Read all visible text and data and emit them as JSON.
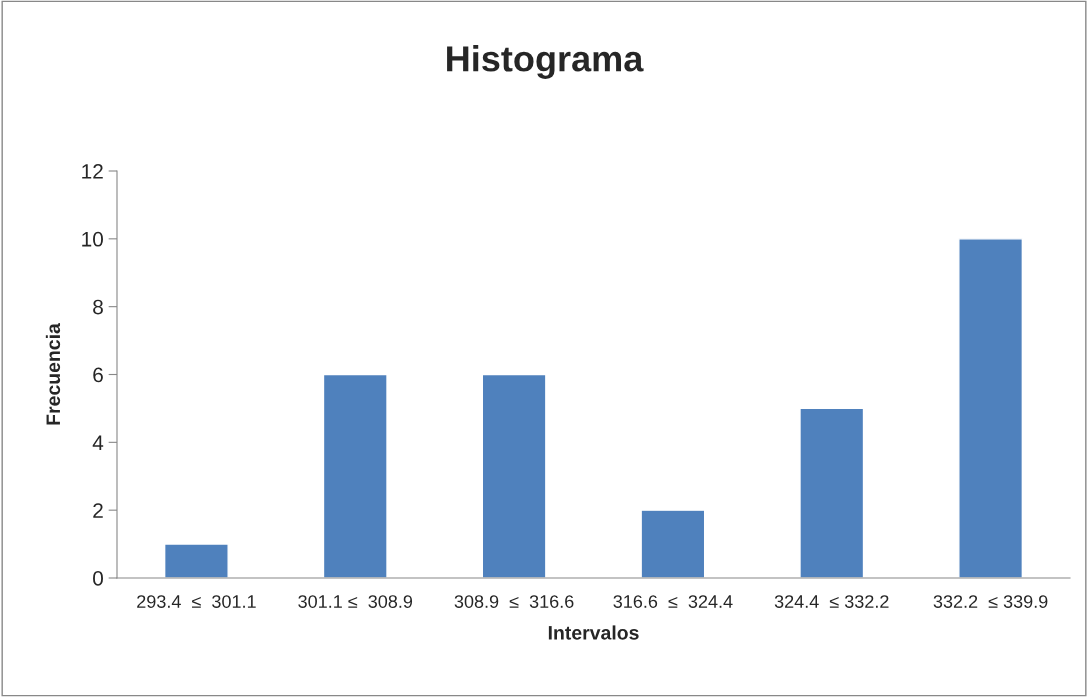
{
  "chart_data": {
    "type": "bar",
    "title": "Histograma",
    "xlabel": "Intervalos",
    "ylabel": "Frecuencia",
    "categories": [
      "293.4  ≤  301.1",
      "301.1 ≤  308.9",
      "308.9  ≤  316.6",
      "316.6  ≤  324.4",
      "324.4  ≤ 332.2",
      "332.2  ≤ 339.9"
    ],
    "values": [
      1,
      6,
      6,
      2,
      5,
      10
    ],
    "color": "#4f81bd",
    "ylim": [
      0,
      12
    ],
    "yticks": [
      0,
      2,
      4,
      6,
      8,
      10,
      12
    ],
    "grid": false,
    "legend": false
  }
}
